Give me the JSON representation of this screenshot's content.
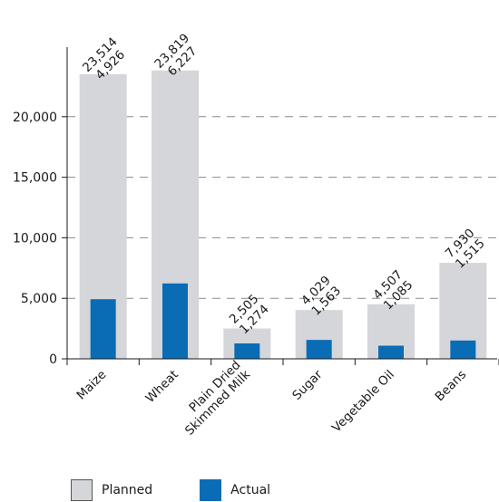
{
  "chart_data": {
    "type": "bar",
    "categories": [
      "Maize",
      "Wheat",
      "Plain Dried Skimmed Milk",
      "Sugar",
      "Vegetable Oil",
      "Beans"
    ],
    "category_lines": [
      [
        "Maize"
      ],
      [
        "Wheat"
      ],
      [
        "Plain Dried",
        "Skimmed Milk"
      ],
      [
        "Sugar"
      ],
      [
        "Vegetable Oil"
      ],
      [
        "Beans"
      ]
    ],
    "series": [
      {
        "name": "Planned",
        "values": [
          23514,
          23819,
          2505,
          4029,
          4507,
          7930
        ],
        "labels": [
          "23,514",
          "23,819",
          "2,505",
          "4,029",
          "4,507",
          "7,930"
        ],
        "color": "#d5d6da"
      },
      {
        "name": "Actual",
        "values": [
          4926,
          6227,
          1274,
          1563,
          1085,
          1515
        ],
        "labels": [
          "4,926",
          "6,227",
          "1,274",
          "1,563",
          "1,085",
          "1,515"
        ],
        "color": "#0a6cb5"
      }
    ],
    "yticks": [
      0,
      5000,
      10000,
      15000,
      20000
    ],
    "ytick_labels": [
      "0",
      "5,000",
      "10,000",
      "15,000",
      "20,000"
    ],
    "ylim": [
      0,
      25000
    ],
    "grid": true,
    "legend_position": "bottom-left"
  },
  "legend": {
    "planned_label": "Planned",
    "actual_label": "Actual"
  }
}
